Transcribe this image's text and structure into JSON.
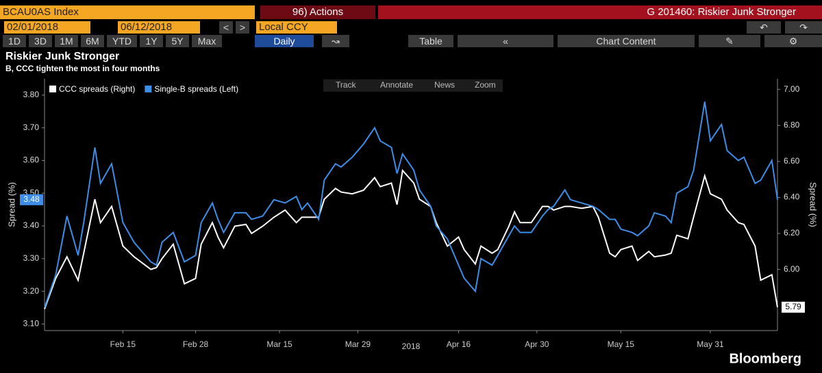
{
  "ui": {
    "ticker": "BCAU0AS Index",
    "actions": "96) Actions",
    "page_title": "G 201460: Riskier Junk Stronger",
    "start_date": "02/01/2018",
    "end_date": "06/12/2018",
    "currency": "Local CCY",
    "periods": [
      "1D",
      "3D",
      "1M",
      "6M",
      "YTD",
      "1Y",
      "5Y",
      "Max"
    ],
    "frequency": "Daily",
    "table_button": "Table",
    "chart_content": "Chart Content",
    "tools": [
      "Track",
      "Annotate",
      "News",
      "Zoom"
    ],
    "brand": "Bloomberg"
  },
  "chart_data": {
    "type": "line",
    "title": "Riskier Junk Stronger",
    "subtitle": "B, CCC tighten the most in four months",
    "ylabel": "Spread (%)",
    "y2label": "Spread (%)",
    "xlabel": "2018",
    "x": [
      "2018-02-01",
      "2018-02-03",
      "2018-02-05",
      "2018-02-07",
      "2018-02-08",
      "2018-02-10",
      "2018-02-11",
      "2018-02-13",
      "2018-02-15",
      "2018-02-17",
      "2018-02-20",
      "2018-02-21",
      "2018-02-22",
      "2018-02-24",
      "2018-02-26",
      "2018-02-28",
      "2018-03-01",
      "2018-03-03",
      "2018-03-04",
      "2018-03-05",
      "2018-03-07",
      "2018-03-09",
      "2018-03-10",
      "2018-03-12",
      "2018-03-14",
      "2018-03-16",
      "2018-03-18",
      "2018-03-19",
      "2018-03-20",
      "2018-03-22",
      "2018-03-23",
      "2018-03-25",
      "2018-03-26",
      "2018-03-28",
      "2018-03-30",
      "2018-04-01",
      "2018-04-02",
      "2018-04-04",
      "2018-04-05",
      "2018-04-06",
      "2018-04-08",
      "2018-04-09",
      "2018-04-11",
      "2018-04-12",
      "2018-04-14",
      "2018-04-16",
      "2018-04-17",
      "2018-04-19",
      "2018-04-20",
      "2018-04-22",
      "2018-04-23",
      "2018-04-25",
      "2018-04-26",
      "2018-04-27",
      "2018-04-29",
      "2018-05-01",
      "2018-05-02",
      "2018-05-03",
      "2018-05-05",
      "2018-05-06",
      "2018-05-08",
      "2018-05-10",
      "2018-05-11",
      "2018-05-13",
      "2018-05-14",
      "2018-05-15",
      "2018-05-17",
      "2018-05-18",
      "2018-05-20",
      "2018-05-21",
      "2018-05-23",
      "2018-05-24",
      "2018-05-25",
      "2018-05-27",
      "2018-05-28",
      "2018-05-30",
      "2018-05-31",
      "2018-06-02",
      "2018-06-03",
      "2018-06-05",
      "2018-06-06",
      "2018-06-08",
      "2018-06-09",
      "2018-06-11",
      "2018-06-12"
    ],
    "xlim": [
      "2018-02-01",
      "2018-06-12"
    ],
    "xticks": [
      {
        "value": "2018-02-15",
        "label": "Feb 15"
      },
      {
        "value": "2018-02-28",
        "label": "Feb 28"
      },
      {
        "value": "2018-03-15",
        "label": "Mar 15"
      },
      {
        "value": "2018-03-29",
        "label": "Mar 29"
      },
      {
        "value": "2018-04-16",
        "label": "Apr 16"
      },
      {
        "value": "2018-04-30",
        "label": "Apr 30"
      },
      {
        "value": "2018-05-15",
        "label": "May 15"
      },
      {
        "value": "2018-05-31",
        "label": "May 31"
      }
    ],
    "ylim": [
      3.08,
      3.85
    ],
    "yticks": [
      {
        "value": 3.1,
        "label": "3.10"
      },
      {
        "value": 3.2,
        "label": "3.20"
      },
      {
        "value": 3.3,
        "label": "3.30"
      },
      {
        "value": 3.4,
        "label": "3.40"
      },
      {
        "value": 3.5,
        "label": "3.50"
      },
      {
        "value": 3.6,
        "label": "3.60"
      },
      {
        "value": 3.7,
        "label": "3.70"
      },
      {
        "value": 3.8,
        "label": "3.80"
      }
    ],
    "y2lim": [
      5.66,
      7.06
    ],
    "y2ticks": [
      {
        "value": 6,
        "label": "6.00"
      },
      {
        "value": 6.2,
        "label": "6.20"
      },
      {
        "value": 6.4,
        "label": "6.40"
      },
      {
        "value": 6.6,
        "label": "6.60"
      },
      {
        "value": 6.8,
        "label": "6.80"
      },
      {
        "value": 7,
        "label": "7.00"
      }
    ],
    "grid": false,
    "legend": "top-left",
    "series": [
      {
        "name": "CCC spreads (Right)",
        "color": "#ffffff",
        "axis": "y2",
        "last_label": "5.79",
        "values": [
          5.78,
          5.95,
          6.07,
          5.94,
          6.09,
          6.39,
          6.26,
          6.35,
          6.13,
          6.07,
          6.0,
          6.01,
          6.06,
          6.14,
          5.92,
          5.95,
          6.14,
          6.26,
          6.18,
          6.12,
          6.24,
          6.25,
          6.2,
          6.24,
          6.29,
          6.33,
          6.26,
          6.29,
          6.29,
          6.29,
          6.39,
          6.45,
          6.43,
          6.42,
          6.44,
          6.51,
          6.46,
          6.48,
          6.36,
          6.55,
          6.48,
          6.39,
          6.35,
          6.26,
          6.13,
          6.18,
          6.11,
          6.03,
          6.13,
          6.09,
          6.11,
          6.24,
          6.32,
          6.26,
          6.26,
          6.35,
          6.35,
          6.33,
          6.35,
          6.35,
          6.34,
          6.35,
          6.29,
          6.09,
          6.07,
          6.11,
          6.13,
          6.05,
          6.1,
          6.07,
          6.08,
          6.09,
          6.19,
          6.17,
          6.29,
          6.52,
          6.42,
          6.39,
          6.33,
          6.26,
          6.25,
          6.13,
          5.94,
          5.97,
          5.79
        ]
      },
      {
        "name": "Single-B spreads (Left)",
        "color": "#3d8ee8",
        "axis": "y",
        "last_label": "3.48",
        "values": [
          3.15,
          3.25,
          3.43,
          3.31,
          3.41,
          3.64,
          3.53,
          3.59,
          3.41,
          3.35,
          3.29,
          3.28,
          3.35,
          3.38,
          3.29,
          3.31,
          3.41,
          3.47,
          3.42,
          3.38,
          3.44,
          3.44,
          3.42,
          3.43,
          3.48,
          3.47,
          3.49,
          3.45,
          3.47,
          3.42,
          3.54,
          3.59,
          3.58,
          3.61,
          3.65,
          3.7,
          3.66,
          3.64,
          3.56,
          3.62,
          3.57,
          3.51,
          3.46,
          3.4,
          3.36,
          3.28,
          3.24,
          3.2,
          3.3,
          3.28,
          3.31,
          3.37,
          3.4,
          3.38,
          3.38,
          3.43,
          3.45,
          3.46,
          3.51,
          3.48,
          3.47,
          3.46,
          3.45,
          3.42,
          3.42,
          3.39,
          3.38,
          3.37,
          3.4,
          3.44,
          3.43,
          3.41,
          3.5,
          3.52,
          3.57,
          3.78,
          3.66,
          3.71,
          3.63,
          3.6,
          3.61,
          3.53,
          3.54,
          3.6,
          3.48
        ]
      }
    ]
  }
}
